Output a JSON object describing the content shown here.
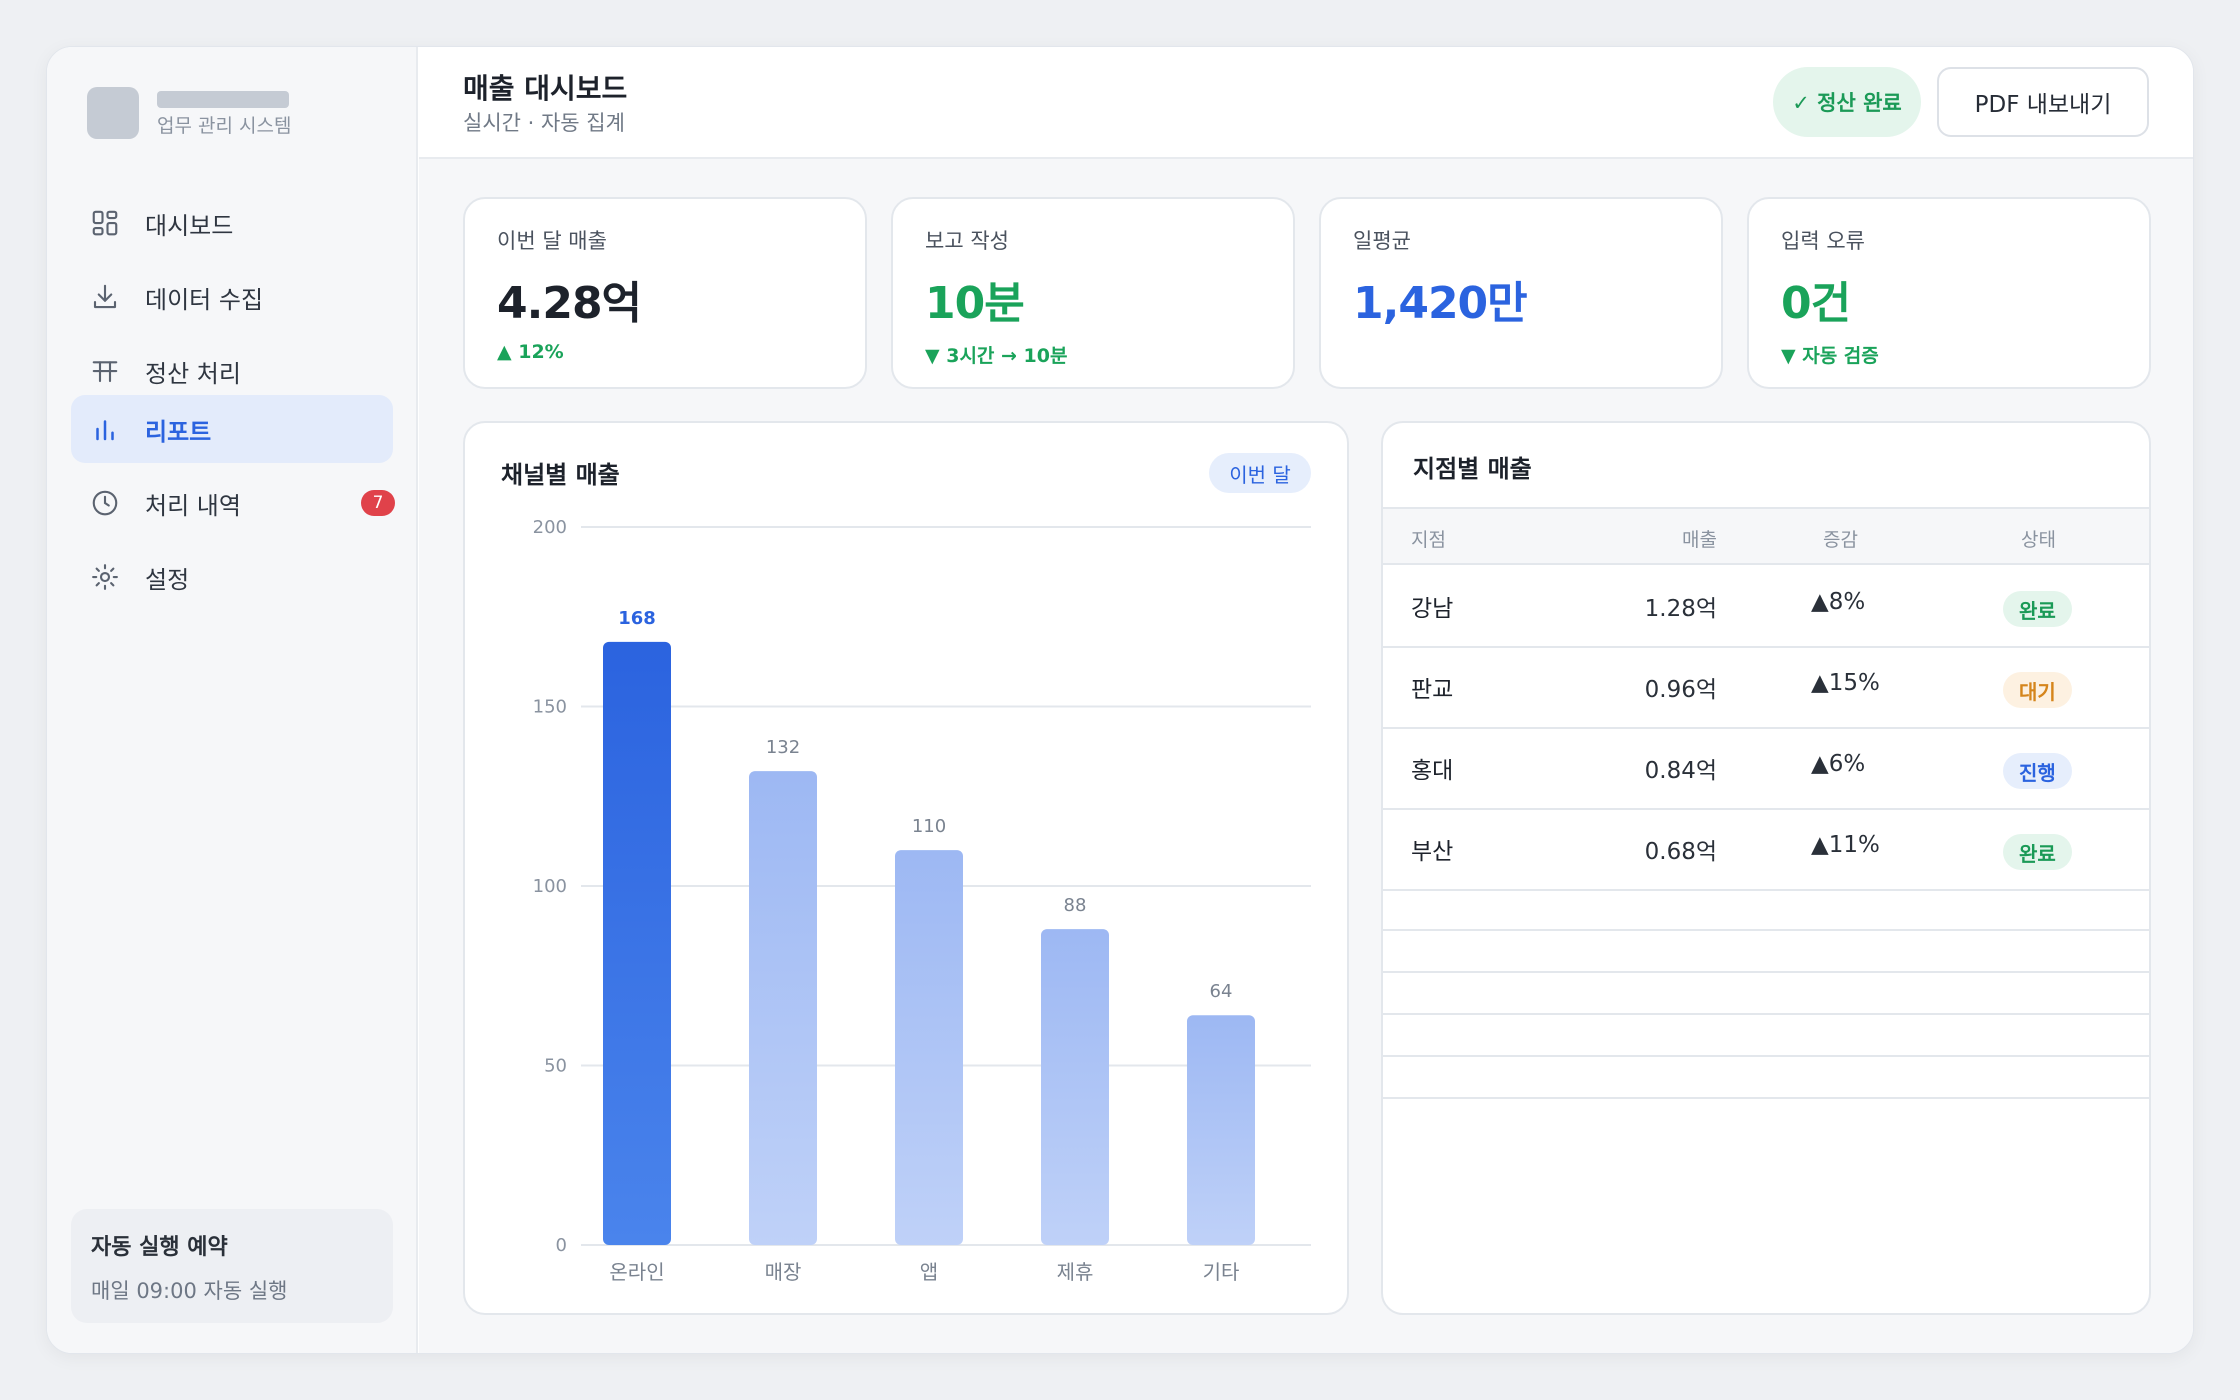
{
  "sidebar": {
    "brand_sub": "업무 관리 시스템",
    "nav": [
      {
        "label": "대시보드",
        "icon": "grid-icon"
      },
      {
        "label": "데이터 수집",
        "icon": "download-icon"
      },
      {
        "label": "정산 처리",
        "icon": "table-icon"
      },
      {
        "label": "리포트",
        "icon": "bar-chart-icon",
        "active": true
      },
      {
        "label": "처리 내역",
        "icon": "clock-icon",
        "badge": "7"
      },
      {
        "label": "설정",
        "icon": "gear-icon"
      }
    ],
    "schedule": {
      "title": "자동 실행 예약",
      "sub": "매일 09:00 자동 실행"
    }
  },
  "header": {
    "title": "매출 대시보드",
    "sub": "실시간 · 자동 집계",
    "status": "✓ 정산 완료",
    "export_label": "PDF 내보내기"
  },
  "kpis": [
    {
      "label": "이번 달 매출",
      "value": "4.28억",
      "delta": "▲ 12%",
      "color": "#1d222b"
    },
    {
      "label": "보고 작성",
      "value": "10분",
      "delta": "▼ 3시간 → 10분",
      "color": "#1aa35a"
    },
    {
      "label": "일평균",
      "value": "1,420만",
      "delta": "",
      "color": "#2b63df"
    },
    {
      "label": "입력 오류",
      "value": "0건",
      "delta": "▼ 자동 검증",
      "color": "#1aa35a"
    }
  ],
  "chart": {
    "title": "채널별 매출",
    "chip": "이번 달"
  },
  "chart_data": {
    "type": "bar",
    "categories": [
      "온라인",
      "매장",
      "앱",
      "제휴",
      "기타"
    ],
    "values": [
      168,
      132,
      110,
      88,
      64
    ],
    "highlight_index": 0,
    "ylim": [
      0,
      200
    ],
    "yticks": [
      0,
      50,
      100,
      150,
      200
    ],
    "grid": true,
    "colors": {
      "highlight": "#2b63df",
      "normal": "#9db8f3"
    }
  },
  "table": {
    "title": "지점별 매출",
    "headers": [
      "지점",
      "매출",
      "증감",
      "상태"
    ],
    "rows": [
      {
        "name": "강남",
        "sales": "1.28억",
        "change": "▲8%",
        "status": "완료",
        "status_type": "done"
      },
      {
        "name": "판교",
        "sales": "0.96억",
        "change": "▲15%",
        "status": "대기",
        "status_type": "wait"
      },
      {
        "name": "홍대",
        "sales": "0.84억",
        "change": "▲6%",
        "status": "진행",
        "status_type": "prog"
      },
      {
        "name": "부산",
        "sales": "0.68억",
        "change": "▲11%",
        "status": "완료",
        "status_type": "done"
      }
    ]
  }
}
